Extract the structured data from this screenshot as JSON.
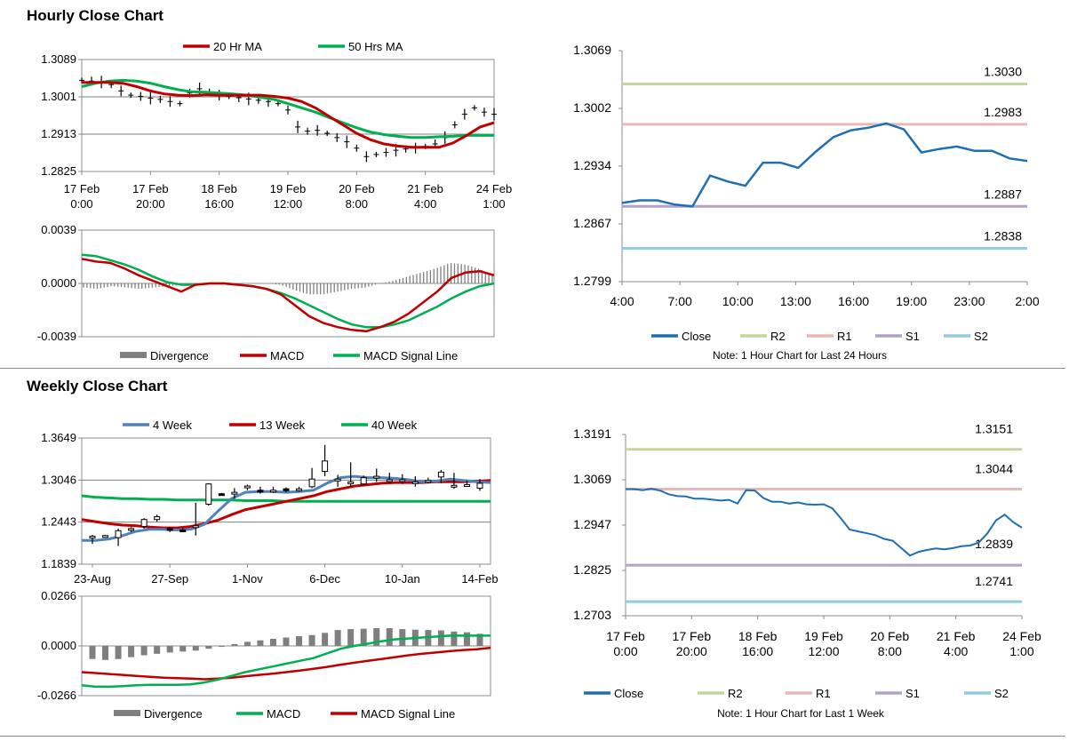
{
  "sections": {
    "hourly_title": "Hourly Close Chart",
    "weekly_title": "Weekly Close Chart"
  },
  "colors": {
    "ma20": "#c00000",
    "ma50": "#00b050",
    "wk4": "#4f81bd",
    "wk13": "#c00000",
    "wk40": "#00b050",
    "macd_red": "#c00000",
    "macd_green": "#00b050",
    "divergence": "#7f7f7f",
    "close": "#1f6fb2",
    "r2": "#c3d69b",
    "r1": "#e6b9b8",
    "s1": "#b3a2c7",
    "s2": "#93cddd",
    "grid": "#7f7f7f"
  },
  "chart_data": [
    {
      "id": "hourly_price",
      "type": "line",
      "ylim": [
        1.2825,
        1.3089
      ],
      "yticks": [
        "1.3089",
        "1.3001",
        "1.2913",
        "1.2825"
      ],
      "xticks": [
        [
          "17 Feb",
          "0:00"
        ],
        [
          "17 Feb",
          "20:00"
        ],
        [
          "18 Feb",
          "16:00"
        ],
        [
          "19 Feb",
          "12:00"
        ],
        [
          "20 Feb",
          "8:00"
        ],
        [
          "21 Feb",
          "4:00"
        ],
        [
          "24 Feb",
          "1:00"
        ]
      ],
      "legend": [
        {
          "name": "20 Hr MA"
        },
        {
          "name": "50 Hrs MA"
        }
      ],
      "price_approx": [
        1.304,
        1.3038,
        1.3036,
        1.303,
        1.3015,
        1.3005,
        1.3002,
        1.2998,
        1.2995,
        1.299,
        1.2985,
        1.301,
        1.302,
        1.3012,
        1.3005,
        1.3002,
        1.2999,
        1.2996,
        1.2993,
        1.299,
        1.2985,
        1.297,
        1.293,
        1.292,
        1.2922,
        1.2915,
        1.2905,
        1.2895,
        1.288,
        1.286,
        1.2865,
        1.287,
        1.2875,
        1.2878,
        1.288,
        1.2884,
        1.289,
        1.2905,
        1.2935,
        1.296,
        1.2975,
        1.2965,
        1.296
      ],
      "series": [
        {
          "name": "20 Hr MA",
          "values": [
            1.3035,
            1.3035,
            1.3035,
            1.3033,
            1.3025,
            1.3015,
            1.3008,
            1.3005,
            1.3004,
            1.3006,
            1.3005,
            1.3005,
            1.3005,
            1.3005,
            1.3002,
            1.2998,
            1.299,
            1.2975,
            1.2955,
            1.2935,
            1.2915,
            1.29,
            1.289,
            1.2885,
            1.2882,
            1.2882,
            1.2882,
            1.2892,
            1.291,
            1.293,
            1.294
          ]
        },
        {
          "name": "50 Hrs MA",
          "values": [
            1.3025,
            1.3033,
            1.3038,
            1.304,
            1.3038,
            1.3033,
            1.3025,
            1.3018,
            1.3013,
            1.3012,
            1.301,
            1.3008,
            1.3005,
            1.3,
            1.2995,
            1.2985,
            1.2975,
            1.2965,
            1.2952,
            1.294,
            1.2928,
            1.2918,
            1.2912,
            1.2908,
            1.2905,
            1.2905,
            1.2907,
            1.2908,
            1.291,
            1.291,
            1.291
          ]
        }
      ]
    },
    {
      "id": "hourly_macd",
      "type": "line",
      "ylim": [
        -0.0039,
        0.0039
      ],
      "yticks": [
        "0.0039",
        "0.0000",
        "-0.0039"
      ],
      "legend": [
        {
          "name": "Divergence"
        },
        {
          "name": "MACD"
        },
        {
          "name": "MACD Signal Line"
        }
      ],
      "series": [
        {
          "name": "MACD",
          "values": [
            0.0018,
            0.0016,
            0.0015,
            0.0011,
            0.0006,
            0.0002,
            -0.0002,
            -0.0006,
            -0.0001,
            0.0,
            0.0,
            -0.0001,
            -0.0002,
            -0.0004,
            -0.0008,
            -0.0016,
            -0.0024,
            -0.0029,
            -0.0032,
            -0.0034,
            -0.0035,
            -0.0032,
            -0.0028,
            -0.0022,
            -0.0014,
            -0.0006,
            0.0004,
            0.0008,
            0.0009,
            0.0006
          ]
        },
        {
          "name": "MACD Signal Line",
          "values": [
            0.0021,
            0.002,
            0.0017,
            0.0014,
            0.001,
            0.0005,
            0.0001,
            -0.0001,
            -0.0001,
            0.0,
            0.0,
            -0.0001,
            -0.0002,
            -0.0004,
            -0.0007,
            -0.0011,
            -0.0016,
            -0.0021,
            -0.0026,
            -0.003,
            -0.0032,
            -0.0032,
            -0.003,
            -0.0027,
            -0.0022,
            -0.0017,
            -0.0011,
            -0.0006,
            -0.0002,
            0.0
          ]
        },
        {
          "name": "Divergence",
          "values": [
            -0.0003,
            -0.0004,
            -0.0002,
            -0.0003,
            -0.0004,
            -0.0003,
            -0.0002,
            -0.0001,
            0.0,
            0.0,
            0.0,
            0.0,
            0.0,
            0.0,
            -0.0001,
            -0.0005,
            -0.0008,
            -0.0008,
            -0.0006,
            -0.0004,
            -0.0003,
            0.0,
            0.0002,
            0.0005,
            0.0008,
            0.0011,
            0.0015,
            0.0014,
            0.0011,
            0.0006
          ]
        }
      ]
    },
    {
      "id": "hourly_24h",
      "type": "line",
      "ylim": [
        1.2799,
        1.3069
      ],
      "yticks": [
        "1.3069",
        "1.3002",
        "1.2934",
        "1.2867",
        "1.2799"
      ],
      "xticks": [
        "4:00",
        "7:00",
        "10:00",
        "13:00",
        "16:00",
        "19:00",
        "23:00",
        "2:00"
      ],
      "levels": [
        {
          "name": "R2",
          "value": "1.3030"
        },
        {
          "name": "R1",
          "value": "1.2983"
        },
        {
          "name": "S1",
          "value": "1.2887"
        },
        {
          "name": "S2",
          "value": "1.2838"
        }
      ],
      "legend": [
        {
          "name": "Close"
        },
        {
          "name": "R2"
        },
        {
          "name": "R1"
        },
        {
          "name": "S1"
        },
        {
          "name": "S2"
        }
      ],
      "note": "Note: 1 Hour Chart for Last 24 Hours",
      "series": [
        {
          "name": "Close",
          "values": [
            1.2891,
            1.2894,
            1.2894,
            1.2889,
            1.2887,
            1.2923,
            1.2916,
            1.2911,
            1.2938,
            1.2938,
            1.2932,
            1.2951,
            1.2968,
            1.2976,
            1.2979,
            1.2984,
            1.2977,
            1.295,
            1.2954,
            1.2957,
            1.2952,
            1.2952,
            1.2943,
            1.294
          ]
        }
      ]
    },
    {
      "id": "weekly_price",
      "type": "line",
      "ylim": [
        1.1839,
        1.3649
      ],
      "yticks": [
        "1.3649",
        "1.3046",
        "1.2443",
        "1.1839"
      ],
      "xticks": [
        "23-Aug",
        "27-Sep",
        "1-Nov",
        "6-Dec",
        "10-Jan",
        "14-Feb"
      ],
      "legend": [
        {
          "name": "4 Week"
        },
        {
          "name": "13 Week"
        },
        {
          "name": "40 Week"
        }
      ],
      "candles_approx": [
        [
          1.222,
          1.224,
          1.213,
          1.226
        ],
        [
          1.225,
          1.225,
          1.222,
          1.226
        ],
        [
          1.222,
          1.232,
          1.21,
          1.235
        ],
        [
          1.233,
          1.235,
          1.23,
          1.237
        ],
        [
          1.238,
          1.248,
          1.235,
          1.25
        ],
        [
          1.248,
          1.252,
          1.245,
          1.255
        ],
        [
          1.235,
          1.234,
          1.23,
          1.237
        ],
        [
          1.233,
          1.232,
          1.23,
          1.236
        ],
        [
          1.238,
          1.239,
          1.225,
          1.272
        ],
        [
          1.27,
          1.299,
          1.268,
          1.3
        ],
        [
          1.285,
          1.284,
          1.283,
          1.286
        ],
        [
          1.285,
          1.287,
          1.278,
          1.293
        ],
        [
          1.295,
          1.296,
          1.29,
          1.298
        ],
        [
          1.29,
          1.288,
          1.285,
          1.295
        ],
        [
          1.288,
          1.29,
          1.286,
          1.295
        ],
        [
          1.292,
          1.29,
          1.287,
          1.294
        ],
        [
          1.29,
          1.292,
          1.288,
          1.295
        ],
        [
          1.295,
          1.306,
          1.293,
          1.322
        ],
        [
          1.317,
          1.332,
          1.31,
          1.355
        ],
        [
          1.305,
          1.306,
          1.295,
          1.312
        ],
        [
          1.301,
          1.302,
          1.295,
          1.33
        ],
        [
          1.299,
          1.308,
          1.297,
          1.311
        ],
        [
          1.31,
          1.31,
          1.302,
          1.321
        ],
        [
          1.305,
          1.305,
          1.3,
          1.315
        ],
        [
          1.304,
          1.305,
          1.299,
          1.313
        ],
        [
          1.3,
          1.302,
          1.295,
          1.31
        ],
        [
          1.304,
          1.304,
          1.3,
          1.308
        ],
        [
          1.309,
          1.316,
          1.3,
          1.319
        ],
        [
          1.297,
          1.297,
          1.292,
          1.315
        ],
        [
          1.298,
          1.298,
          1.296,
          1.304
        ],
        [
          1.293,
          1.3,
          1.289,
          1.306
        ]
      ],
      "series": [
        {
          "name": "4 Week",
          "values": [
            1.218,
            1.218,
            1.22,
            1.225,
            1.231,
            1.234,
            1.234,
            1.233,
            1.234,
            1.241,
            1.26,
            1.278,
            1.287,
            1.288,
            1.288,
            1.287,
            1.288,
            1.29,
            1.3,
            1.308,
            1.31,
            1.308,
            1.308,
            1.307,
            1.305,
            1.302,
            1.303,
            1.306,
            1.304,
            1.302,
            1.301
          ]
        },
        {
          "name": "13 Week",
          "values": [
            1.248,
            1.245,
            1.242,
            1.24,
            1.239,
            1.237,
            1.236,
            1.236,
            1.238,
            1.242,
            1.247,
            1.255,
            1.262,
            1.266,
            1.27,
            1.274,
            1.278,
            1.282,
            1.288,
            1.292,
            1.296,
            1.298,
            1.3,
            1.301,
            1.301,
            1.301,
            1.302,
            1.302,
            1.302,
            1.303,
            1.304
          ]
        },
        {
          "name": "40 Week",
          "values": [
            1.282,
            1.28,
            1.279,
            1.278,
            1.278,
            1.277,
            1.277,
            1.276,
            1.276,
            1.276,
            1.276,
            1.276,
            1.275,
            1.275,
            1.275,
            1.274,
            1.274,
            1.274,
            1.274,
            1.274,
            1.274,
            1.274,
            1.274,
            1.274,
            1.274,
            1.274,
            1.274,
            1.274,
            1.274,
            1.274,
            1.274
          ]
        }
      ]
    },
    {
      "id": "weekly_macd",
      "type": "line",
      "ylim": [
        -0.0266,
        0.0266
      ],
      "yticks": [
        "0.0266",
        "0.0000",
        "-0.0266"
      ],
      "legend": [
        {
          "name": "Divergence"
        },
        {
          "name": "MACD"
        },
        {
          "name": "MACD Signal Line"
        }
      ],
      "series": [
        {
          "name": "MACD",
          "values": [
            -0.021,
            -0.0218,
            -0.0218,
            -0.0215,
            -0.021,
            -0.0208,
            -0.0208,
            -0.0208,
            -0.0205,
            -0.0195,
            -0.018,
            -0.016,
            -0.014,
            -0.0125,
            -0.011,
            -0.0095,
            -0.008,
            -0.0065,
            -0.004,
            -0.0015,
            0.0,
            0.0012,
            0.0025,
            0.0035,
            0.004,
            0.0045,
            0.005,
            0.0055,
            0.0055,
            0.0055,
            0.0055
          ]
        },
        {
          "name": "MACD Signal Line",
          "values": [
            -0.014,
            -0.0145,
            -0.015,
            -0.0155,
            -0.016,
            -0.0165,
            -0.017,
            -0.0172,
            -0.0175,
            -0.0178,
            -0.0175,
            -0.017,
            -0.0162,
            -0.0155,
            -0.0148,
            -0.014,
            -0.0132,
            -0.0122,
            -0.0112,
            -0.01,
            -0.009,
            -0.008,
            -0.007,
            -0.006,
            -0.005,
            -0.0042,
            -0.0035,
            -0.0028,
            -0.0022,
            -0.0018,
            -0.001
          ]
        },
        {
          "name": "Divergence",
          "values": [
            -0.007,
            -0.0075,
            -0.007,
            -0.006,
            -0.005,
            -0.0042,
            -0.0035,
            -0.003,
            -0.0025,
            -0.0015,
            -0.0005,
            0.001,
            0.0022,
            0.003,
            0.0038,
            0.0045,
            0.0052,
            0.0058,
            0.007,
            0.0085,
            0.009,
            0.0092,
            0.0095,
            0.0095,
            0.009,
            0.0087,
            0.0085,
            0.0083,
            0.0077,
            0.0073,
            0.0065
          ]
        }
      ]
    },
    {
      "id": "weekly_1w",
      "type": "line",
      "ylim": [
        1.2703,
        1.3191
      ],
      "yticks": [
        "1.3191",
        "1.3069",
        "1.2947",
        "1.2825",
        "1.2703"
      ],
      "xticks": [
        [
          "17 Feb",
          "0:00"
        ],
        [
          "17 Feb",
          "20:00"
        ],
        [
          "18 Feb",
          "16:00"
        ],
        [
          "19 Feb",
          "12:00"
        ],
        [
          "20 Feb",
          "8:00"
        ],
        [
          "21 Feb",
          "4:00"
        ],
        [
          "24 Feb",
          "1:00"
        ]
      ],
      "levels": [
        {
          "name": "R2",
          "value": "1.3151"
        },
        {
          "name": "R1",
          "value": "1.3044"
        },
        {
          "name": "S1",
          "value": "1.2839"
        },
        {
          "name": "S2",
          "value": "1.2741"
        }
      ],
      "legend": [
        {
          "name": "Close"
        },
        {
          "name": "R2"
        },
        {
          "name": "R1"
        },
        {
          "name": "S1"
        },
        {
          "name": "S2"
        }
      ],
      "note": "Note: 1 Hour Chart for Last 1 Week",
      "series": [
        {
          "name": "Close",
          "values": [
            1.3044,
            1.3044,
            1.3041,
            1.3045,
            1.304,
            1.303,
            1.3025,
            1.3024,
            1.3018,
            1.3018,
            1.3016,
            1.3013,
            1.3015,
            1.3005,
            1.3041,
            1.304,
            1.302,
            1.301,
            1.301,
            1.3005,
            1.3008,
            1.3003,
            1.3002,
            1.3003,
            1.2992,
            1.2965,
            1.2935,
            1.293,
            1.2925,
            1.292,
            1.291,
            1.2905,
            1.2885,
            1.2865,
            1.2875,
            1.288,
            1.2884,
            1.2882,
            1.2885,
            1.289,
            1.2892,
            1.29,
            1.2925,
            1.296,
            1.2975,
            1.2955,
            1.294
          ]
        }
      ]
    }
  ],
  "legends": {
    "hourly_ma20": "20 Hr MA",
    "hourly_ma50": "50 Hrs MA",
    "divergence": "Divergence",
    "macd": "MACD",
    "macd_signal": "MACD Signal Line",
    "close": "Close",
    "r2": "R2",
    "r1": "R1",
    "s1": "S1",
    "s2": "S2",
    "wk4": "4 Week",
    "wk13": "13 Week",
    "wk40": "40 Week"
  }
}
